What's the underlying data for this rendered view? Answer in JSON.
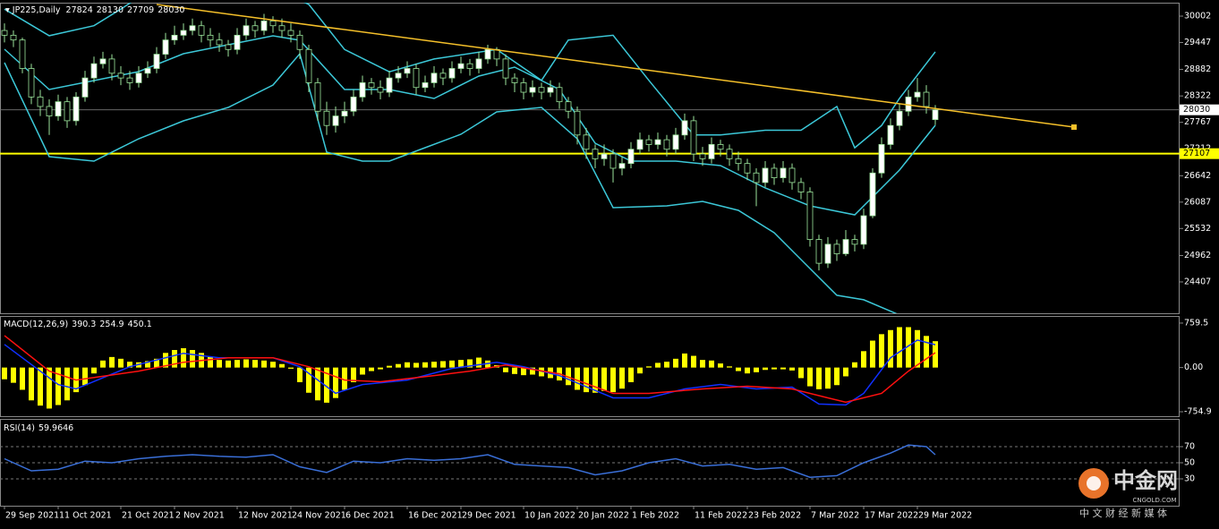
{
  "chart_data": [
    {
      "type": "candlestick",
      "title": "JP225,Daily",
      "categories": [
        "29 Sep 2021",
        null,
        null,
        null,
        null,
        null,
        "11 Oct 2021",
        null,
        null,
        null,
        null,
        null,
        null,
        "21 Oct 2021",
        null,
        null,
        null,
        null,
        null,
        "2 Nov 2021",
        null,
        null,
        null,
        null,
        null,
        null,
        "12 Nov 2021",
        null,
        null,
        null,
        null,
        null,
        "24 Nov 2021",
        null,
        null,
        null,
        null,
        null,
        "6 Dec 2021",
        null,
        null,
        null,
        null,
        null,
        null,
        "16 Dec 2021",
        null,
        null,
        null,
        null,
        null,
        "29 Dec 2021",
        null,
        null,
        null,
        null,
        null,
        null,
        "10 Jan 2022",
        null,
        null,
        null,
        null,
        null,
        "20 Jan 2022",
        null,
        null,
        null,
        null,
        null,
        "1 Feb 2022",
        null,
        null,
        null,
        null,
        null,
        null,
        "11 Feb 2022",
        null,
        null,
        null,
        null,
        null,
        "23 Feb 2022",
        null,
        null,
        null,
        null,
        null,
        null,
        "7 Mar 2022",
        null,
        null,
        null,
        null,
        null,
        "17 Mar 2022",
        null,
        null,
        null,
        null,
        null,
        "29 Mar 2022",
        null,
        null
      ],
      "open": [
        29700,
        29600,
        29500,
        28900,
        28300,
        28100,
        27900,
        28200,
        27800,
        28300,
        28700,
        29000,
        29100,
        28800,
        28700,
        28600,
        28800,
        28900,
        29200,
        29500,
        29600,
        29700,
        29800,
        29600,
        29500,
        29400,
        29300,
        29600,
        29800,
        29700,
        29900,
        29800,
        29700,
        29600,
        29300,
        28600,
        28000,
        27700,
        27900,
        28000,
        28300,
        28600,
        28500,
        28400,
        28700,
        28800,
        28900,
        28500,
        28600,
        28800,
        28700,
        28900,
        29000,
        28900,
        29100,
        29300,
        29100,
        28700,
        28600,
        28400,
        28500,
        28400,
        28500,
        28200,
        28000,
        27500,
        27200,
        27000,
        27100,
        26800,
        26900,
        27200,
        27400,
        27300,
        27400,
        27200,
        27500,
        27800,
        27100,
        27000,
        27300,
        27200,
        27000,
        26900,
        26700,
        26500,
        26800,
        26600,
        26800,
        26500,
        26300,
        25300,
        24800,
        25200,
        25000,
        25300,
        25200,
        25800,
        26700,
        27300,
        27700,
        28000,
        28300,
        28400,
        27824
      ],
      "high": [
        29850,
        29700,
        29550,
        29000,
        28450,
        28250,
        28350,
        28300,
        28400,
        28850,
        29150,
        29250,
        29200,
        28950,
        28850,
        28950,
        29050,
        29350,
        29650,
        29800,
        29850,
        29950,
        29900,
        29750,
        29650,
        29500,
        29750,
        29950,
        29900,
        30050,
        30000,
        29950,
        29850,
        29700,
        29400,
        28700,
        28200,
        28100,
        28200,
        28450,
        28750,
        28700,
        28650,
        28850,
        28950,
        29050,
        29000,
        28750,
        28950,
        28900,
        29050,
        29150,
        29100,
        29250,
        29400,
        29350,
        29200,
        28800,
        28700,
        28650,
        28600,
        28650,
        28600,
        28300,
        28100,
        27650,
        27300,
        27300,
        27200,
        27050,
        27350,
        27550,
        27500,
        27550,
        27500,
        27650,
        27950,
        27900,
        27250,
        27450,
        27400,
        27300,
        27150,
        27000,
        26800,
        26950,
        26900,
        26950,
        26900,
        26600,
        26400,
        25400,
        25350,
        25300,
        25500,
        25400,
        25950,
        26800,
        27450,
        27850,
        28150,
        28450,
        28700,
        28550,
        28130
      ],
      "low": [
        29450,
        29350,
        28800,
        28150,
        27900,
        27500,
        27800,
        27650,
        27700,
        28200,
        28600,
        28900,
        28650,
        28550,
        28450,
        28500,
        28700,
        28800,
        29100,
        29400,
        29500,
        29600,
        29450,
        29350,
        29250,
        29150,
        29200,
        29500,
        29550,
        29600,
        29650,
        29550,
        29450,
        29100,
        28400,
        27800,
        27500,
        27550,
        27750,
        27900,
        28200,
        28350,
        28250,
        28300,
        28600,
        28700,
        28350,
        28400,
        28500,
        28550,
        28600,
        28800,
        28750,
        28800,
        29000,
        28950,
        28550,
        28400,
        28250,
        28300,
        28250,
        28300,
        28050,
        27850,
        27300,
        27000,
        26800,
        26850,
        26500,
        26650,
        26800,
        27100,
        27150,
        27200,
        27050,
        27100,
        27400,
        26950,
        26850,
        26900,
        27050,
        26850,
        26750,
        26550,
        26000,
        26400,
        26450,
        26500,
        26350,
        26150,
        25150,
        24650,
        24700,
        24850,
        24950,
        25050,
        25100,
        25750,
        26600,
        27200,
        27600,
        27900,
        28200,
        27950,
        27709
      ],
      "close": [
        29600,
        29500,
        28900,
        28300,
        28100,
        27900,
        28200,
        27800,
        28300,
        28700,
        29000,
        29100,
        28800,
        28700,
        28600,
        28800,
        28900,
        29200,
        29500,
        29600,
        29700,
        29800,
        29600,
        29500,
        29400,
        29300,
        29600,
        29800,
        29700,
        29900,
        29800,
        29700,
        29600,
        29300,
        28600,
        28000,
        27700,
        27900,
        28000,
        28300,
        28600,
        28500,
        28400,
        28700,
        28800,
        28900,
        28500,
        28600,
        28800,
        28700,
        28900,
        29000,
        28900,
        29100,
        29300,
        29100,
        28700,
        28600,
        28400,
        28500,
        28400,
        28500,
        28200,
        28000,
        27500,
        27200,
        27000,
        27100,
        26800,
        26900,
        27200,
        27400,
        27300,
        27400,
        27200,
        27500,
        27800,
        27100,
        27000,
        27300,
        27200,
        27000,
        26900,
        26700,
        26500,
        26800,
        26600,
        26800,
        26500,
        26300,
        25300,
        24800,
        25200,
        25000,
        25300,
        25200,
        25800,
        26700,
        27300,
        27700,
        28000,
        28300,
        28400,
        28100,
        28030
      ],
      "up_color": "#ffffff",
      "down_color": "#000000",
      "wick_color": "#9be59b",
      "xlim": [
        -0.5,
        131.3
      ],
      "ylim": [
        23747,
        30285
      ],
      "yticks": [
        30002,
        29447,
        28882,
        28322,
        27767,
        27212,
        26642,
        26087,
        25532,
        24962,
        24407
      ],
      "overlays": [
        {
          "color": "#3cc8d8",
          "x": [
            0,
            5,
            10,
            13,
            15,
            20,
            25,
            30,
            34,
            38,
            43,
            48,
            55,
            60,
            63,
            68,
            72,
            77,
            80,
            85,
            89,
            93,
            95,
            98,
            100,
            104
          ],
          "values": [
            30150,
            29590,
            29800,
            30150,
            30400,
            30700,
            30800,
            30600,
            30250,
            29300,
            28830,
            29100,
            29300,
            28650,
            29500,
            29600,
            28650,
            27500,
            27500,
            27600,
            27600,
            28100,
            27230,
            27700,
            28270,
            29250
          ]
        },
        {
          "color": "#3cc8d8",
          "x": [
            0,
            5,
            10,
            15,
            20,
            25,
            30,
            33,
            38,
            43,
            48,
            53,
            57,
            62,
            66,
            70,
            75,
            80,
            85,
            90,
            95,
            100,
            104
          ],
          "values": [
            29305,
            28457,
            28645,
            28834,
            29211,
            29399,
            29588,
            29493,
            28457,
            28457,
            28269,
            28740,
            28928,
            28457,
            27327,
            26950,
            26950,
            26856,
            26385,
            26008,
            25820,
            26762,
            27704
          ]
        },
        {
          "color": "#3cc8d8",
          "x": [
            0,
            5,
            10,
            15,
            20,
            25,
            30,
            33,
            36,
            40,
            43,
            47,
            51,
            55,
            60,
            64,
            68,
            74,
            78,
            82,
            86,
            90,
            93,
            96,
            100,
            104
          ],
          "values": [
            29022,
            27044,
            26950,
            27421,
            27798,
            28080,
            28551,
            29211,
            27138,
            26950,
            26950,
            27233,
            27515,
            27986,
            28080,
            27421,
            25970,
            26008,
            26102,
            25914,
            25443,
            24690,
            24125,
            24031,
            23711,
            23523
          ]
        }
      ],
      "trendline": {
        "x": [
          17,
          119.5
        ],
        "values": [
          30247,
          27666
        ],
        "color": "#f5c02a"
      },
      "hline": {
        "value": 27107,
        "color": "#ffff00"
      }
    },
    {
      "type": "macd",
      "title": "MACD(12,26,9)",
      "histogram": {
        "color": "#ffff00",
        "values": [
          -200,
          -260,
          -380,
          -560,
          -650,
          -700,
          -640,
          -560,
          -420,
          -300,
          -100,
          120,
          180,
          150,
          100,
          90,
          110,
          150,
          250,
          300,
          330,
          300,
          250,
          180,
          130,
          120,
          130,
          140,
          130,
          120,
          100,
          60,
          -20,
          -250,
          -430,
          -560,
          -600,
          -520,
          -380,
          -250,
          -120,
          -60,
          -30,
          30,
          60,
          90,
          80,
          90,
          100,
          110,
          120,
          130,
          140,
          170,
          120,
          40,
          -80,
          -110,
          -130,
          -120,
          -150,
          -180,
          -220,
          -300,
          -380,
          -420,
          -430,
          -400,
          -420,
          -360,
          -250,
          -100,
          20,
          80,
          100,
          150,
          240,
          200,
          130,
          120,
          70,
          20,
          -60,
          -100,
          -80,
          -40,
          -30,
          -30,
          -50,
          -180,
          -320,
          -370,
          -360,
          -300,
          -150,
          90,
          280,
          460,
          570,
          640,
          690,
          690,
          640,
          540,
          450.1
        ]
      },
      "series": [
        {
          "color": "#1030ff",
          "x": [
            0,
            6,
            8,
            14,
            20,
            24,
            30,
            33,
            37,
            40,
            45,
            50,
            55,
            58,
            62,
            68,
            72,
            76,
            80,
            84,
            88,
            91,
            94,
            96,
            99,
            102,
            104
          ],
          "values": [
            395,
            -290,
            -365,
            15,
            243,
            167,
            167,
            15,
            -440,
            -290,
            -213,
            -15,
            91,
            15,
            -137,
            -517,
            -517,
            -365,
            -289,
            -365,
            -334,
            -623,
            -638,
            -441,
            167,
            470,
            390.3
          ]
        },
        {
          "color": "#ff1010",
          "x": [
            0,
            5,
            8,
            15,
            20,
            25,
            30,
            34,
            38,
            42,
            48,
            52,
            56,
            62,
            68,
            72,
            78,
            83,
            88,
            92,
            94,
            98,
            101,
            104
          ],
          "values": [
            547,
            -61,
            -213,
            -61,
            91,
            167,
            167,
            15,
            -213,
            -243,
            -137,
            -61,
            45,
            -106,
            -441,
            -441,
            -365,
            -319,
            -365,
            -517,
            -593,
            -441,
            -61,
            254.9
          ]
        }
      ],
      "ylim": [
        -831,
        881
      ],
      "yticks": [
        759.5,
        {
          "value": 0,
          "label": "0.00"
        },
        -754.9
      ]
    },
    {
      "type": "rsi",
      "title": "RSI(14)",
      "series": [
        {
          "color": "#3a6fd8",
          "x": [
            0,
            3,
            6,
            9,
            12,
            15,
            18,
            21,
            24,
            27,
            30,
            33,
            36,
            39,
            42,
            45,
            48,
            51,
            54,
            57,
            60,
            63,
            66,
            69,
            72,
            75,
            78,
            81,
            84,
            87,
            90,
            93,
            96,
            99,
            101,
            103,
            104
          ],
          "values": [
            55,
            40,
            42,
            52,
            50,
            55,
            58,
            60,
            58,
            57,
            60,
            45,
            38,
            52,
            50,
            55,
            53,
            55,
            60,
            48,
            46,
            44,
            35,
            40,
            50,
            55,
            46,
            48,
            42,
            44,
            32,
            34,
            50,
            62,
            72,
            70,
            59.9646
          ]
        }
      ],
      "ylim": [
        -3.3,
        103.3
      ],
      "yticks": [
        70,
        50,
        30
      ]
    }
  ],
  "logo": {
    "name": "中金网",
    "url": "CNGOLD.COM",
    "tagline": "中 文 财 经 新 媒 体"
  }
}
